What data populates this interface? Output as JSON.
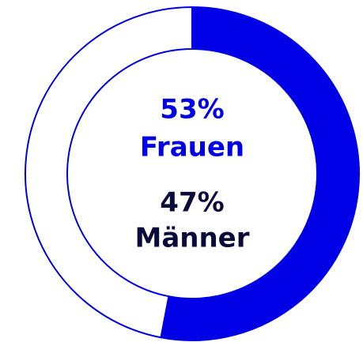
{
  "chart_data": {
    "type": "pie",
    "donut": true,
    "categories": [
      "Frauen",
      "Männer"
    ],
    "values": [
      53,
      47
    ],
    "value_labels": [
      "53%",
      "47%"
    ],
    "colors": [
      "#0000e6",
      "#ffffff"
    ],
    "label_colors": [
      "#0000e6",
      "#0b0b3b"
    ],
    "stroke": "#0000e6"
  }
}
